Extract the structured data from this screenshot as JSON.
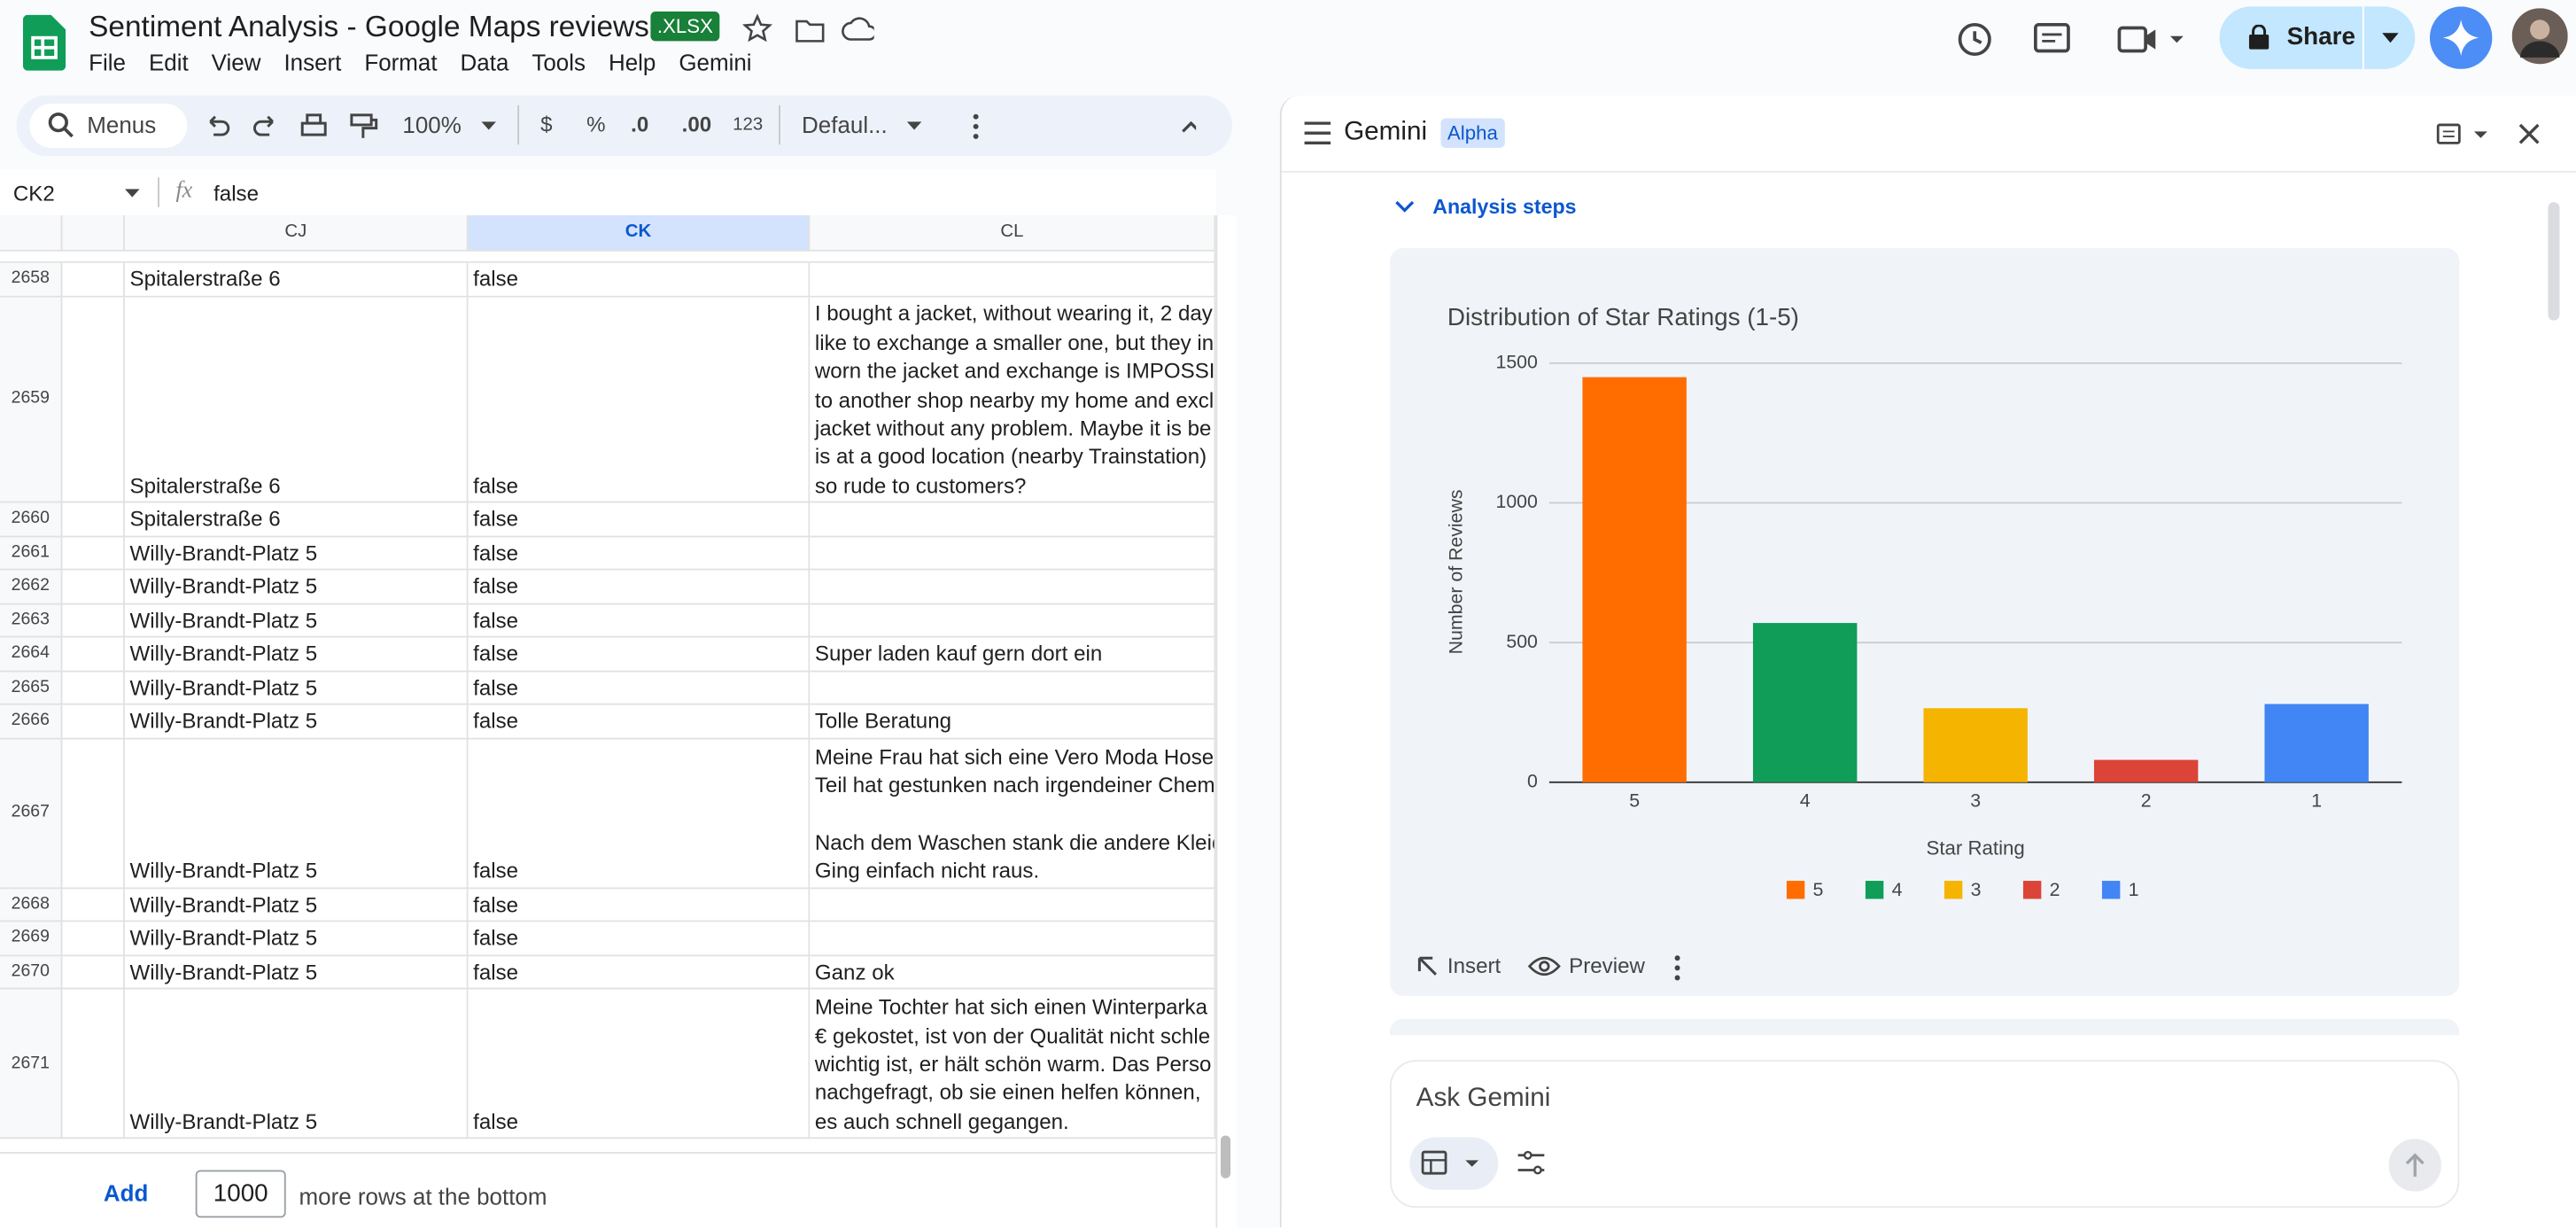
{
  "app": {
    "title": "Sentiment Analysis - Google Maps reviews",
    "badge": ".XLSX",
    "menu": [
      "File",
      "Edit",
      "View",
      "Insert",
      "Format",
      "Data",
      "Tools",
      "Help",
      "Gemini"
    ],
    "share": "Share"
  },
  "toolbar": {
    "search": "Menus",
    "zoom": "100%",
    "currency": "$",
    "percent": "%",
    "dec_less": ".0",
    "dec_more": ".00",
    "format": "123",
    "font": "Defaul..."
  },
  "formula": {
    "cell": "CK2",
    "value": "false"
  },
  "sheet": {
    "columns": [
      "CJ",
      "CK",
      "CL"
    ],
    "rows": [
      {
        "num": "2658",
        "cj": "Spitalerstraße 6",
        "ck": "false"
      },
      {
        "num": "2659",
        "cj": "Spitalerstraße 6",
        "ck": "false",
        "cl": [
          [
            "I bought a jacket, without wearing it, 2 day",
            "like to exchange a smaller one, but they in",
            "worn the jacket and exchange is IMPOSSIB",
            "to another shop nearby my home and excl",
            "jacket without any problem. Maybe it is be",
            "is at a good location (nearby Trainstation) :",
            "so rude to customers?"
          ]
        ]
      },
      {
        "num": "2660",
        "cj": "Spitalerstraße 6",
        "ck": "false"
      },
      {
        "num": "2661",
        "cj": "Willy-Brandt-Platz 5",
        "ck": "false"
      },
      {
        "num": "2662",
        "cj": "Willy-Brandt-Platz 5",
        "ck": "false"
      },
      {
        "num": "2663",
        "cj": "Willy-Brandt-Platz 5",
        "ck": "false"
      },
      {
        "num": "2664",
        "cj": "Willy-Brandt-Platz 5",
        "ck": "false",
        "cl": [
          [
            "Super laden kauf gern dort ein"
          ]
        ]
      },
      {
        "num": "2665",
        "cj": "Willy-Brandt-Platz 5",
        "ck": "false"
      },
      {
        "num": "2666",
        "cj": "Willy-Brandt-Platz 5",
        "ck": "false",
        "cl": [
          [
            "Tolle Beratung"
          ]
        ]
      },
      {
        "num": "2667",
        "cj": "Willy-Brandt-Platz 5",
        "ck": "false",
        "cl": [
          [
            "Meine Frau hat sich eine Vero Moda Hose",
            "Teil hat gestunken nach irgendeiner Chemi"
          ],
          [
            "Nach dem Waschen stank die andere Kleid",
            "Ging einfach nicht raus."
          ]
        ]
      },
      {
        "num": "2668",
        "cj": "Willy-Brandt-Platz 5",
        "ck": "false"
      },
      {
        "num": "2669",
        "cj": "Willy-Brandt-Platz 5",
        "ck": "false"
      },
      {
        "num": "2670",
        "cj": "Willy-Brandt-Platz 5",
        "ck": "false",
        "cl": [
          [
            "Ganz ok"
          ]
        ]
      },
      {
        "num": "2671",
        "cj": "Willy-Brandt-Platz 5",
        "ck": "false",
        "cl": [
          [
            "Meine Tochter hat sich einen Winterparka",
            "€ gekostet,  ist von der Qualität nicht schle",
            "wichtig ist,  er hält schön warm. Das Perso",
            "nachgefragt,  ob sie einen helfen können,",
            "es auch schnell gegangen."
          ]
        ]
      }
    ]
  },
  "footer": {
    "add": "Add",
    "count": 1000,
    "text": "more rows at the bottom"
  },
  "panel": {
    "title": "Gemini",
    "badge": "Alpha",
    "steps": "Analysis steps",
    "insert": "Insert",
    "preview": "Preview",
    "ask": "Ask Gemini",
    "chart_data": {
      "type": "bar",
      "title": "Distribution of Star Ratings (1-5)",
      "x_label": "Star Rating",
      "y_label": "Number of Reviews",
      "categories": [
        "5",
        "4",
        "3",
        "2",
        "1"
      ],
      "values": [
        1450,
        570,
        265,
        80,
        280
      ],
      "colors": [
        "#ff6d01",
        "#0f9d58",
        "#f4b400",
        "#db4437",
        "#4285f4"
      ],
      "ylim": [
        0,
        1500
      ],
      "yticks": [
        0,
        500,
        1000,
        1500
      ],
      "grid": true,
      "legend": "bottom"
    }
  }
}
